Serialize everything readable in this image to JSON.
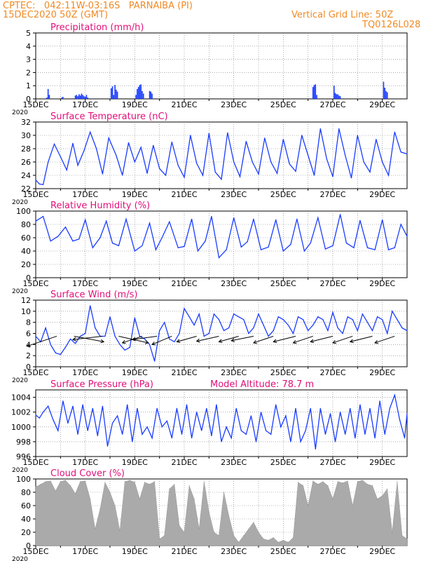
{
  "header": {
    "line1": "CPTEC:   042:11W-03:16S   PARNAIBA (PI)",
    "line2": "15DEC2020 50Z (GMT)",
    "grid_note": "Vertical Grid Line: 50Z",
    "code": "TQ0126L028",
    "color": "#f08a24"
  },
  "colors": {
    "title": "#e0107a",
    "series": "#1a3cff",
    "cloud": "#aaaaaa",
    "grid": "#777777",
    "wind_arrow": "#000000"
  },
  "chart_data": [
    {
      "type": "bar",
      "title": "Precipitation (mm/h)",
      "ylim": [
        0,
        5
      ],
      "yticks": [
        0,
        1,
        2,
        3,
        4,
        5
      ],
      "xticks": [
        "15DEC",
        "17DEC",
        "19DEC",
        "21DEC",
        "23DEC",
        "25DEC",
        "27DEC",
        "29DEC"
      ],
      "corner_label": "2020",
      "x_days": [
        0.45,
        0.5,
        0.55,
        1.05,
        1.1,
        1.6,
        1.65,
        1.7,
        1.75,
        1.8,
        1.85,
        1.9,
        1.95,
        2.0,
        2.05,
        2.1,
        3.05,
        3.1,
        3.15,
        3.2,
        3.25,
        3.3,
        4.05,
        4.1,
        4.15,
        4.2,
        4.25,
        4.3,
        4.35,
        4.6,
        4.65,
        4.7,
        11.2,
        11.25,
        11.3,
        11.35,
        12.05,
        12.1,
        12.15,
        12.2,
        12.25,
        12.3,
        14.05,
        14.1,
        14.15,
        14.2
      ],
      "values": [
        0.1,
        0.75,
        0.3,
        0.1,
        0.15,
        0.25,
        0.3,
        0.2,
        0.35,
        0.25,
        0.4,
        0.3,
        0.2,
        0.15,
        0.3,
        0.1,
        0.8,
        0.95,
        0.3,
        1.05,
        0.7,
        0.55,
        0.3,
        0.75,
        0.9,
        1.05,
        1.1,
        0.6,
        0.4,
        0.6,
        0.55,
        0.4,
        0.9,
        1.05,
        1.1,
        0.3,
        1.0,
        0.45,
        0.35,
        0.35,
        0.25,
        0.2,
        1.3,
        0.85,
        0.6,
        0.5
      ]
    },
    {
      "type": "line",
      "title": "Surface Temperature (nC)",
      "ylim": [
        22,
        32
      ],
      "yticks": [
        22,
        24,
        26,
        28,
        30,
        32
      ],
      "xticks": [
        "15DEC",
        "17DEC",
        "19DEC",
        "21DEC",
        "23DEC",
        "25DEC",
        "27DEC",
        "29DEC"
      ],
      "corner_label": "2020",
      "x_days": [
        0,
        0.15,
        0.3,
        0.5,
        0.75,
        1.0,
        1.25,
        1.5,
        1.7,
        1.95,
        2.2,
        2.45,
        2.7,
        2.95,
        3.25,
        3.5,
        3.75,
        4.0,
        4.25,
        4.5,
        4.75,
        5.0,
        5.25,
        5.5,
        5.75,
        6.0,
        6.25,
        6.5,
        6.75,
        7.0,
        7.25,
        7.5,
        7.75,
        8.0,
        8.25,
        8.5,
        8.75,
        9.0,
        9.25,
        9.5,
        9.75,
        10.0,
        10.25,
        10.5,
        10.75,
        11.0,
        11.25,
        11.5,
        11.75,
        12.0,
        12.25,
        12.5,
        12.75,
        13.0,
        13.25,
        13.5,
        13.75,
        14.0,
        14.25,
        14.5,
        14.75,
        15.0
      ],
      "values": [
        23.3,
        22.7,
        22.6,
        26.0,
        28.7,
        26.8,
        24.8,
        28.8,
        25.5,
        27.7,
        30.5,
        28.0,
        24.2,
        29.6,
        27.0,
        24.0,
        28.9,
        26.0,
        28.2,
        24.3,
        28.5,
        25.0,
        24.0,
        29.0,
        25.5,
        23.7,
        30.0,
        25.8,
        24.0,
        30.3,
        24.5,
        23.4,
        30.4,
        26.0,
        23.8,
        29.1,
        26.0,
        24.2,
        29.6,
        26.0,
        24.3,
        29.4,
        25.7,
        24.6,
        30.0,
        27.0,
        24.0,
        31.0,
        26.5,
        23.8,
        31.0,
        27.0,
        23.6,
        30.0,
        26.0,
        24.5,
        29.4,
        26.0,
        24.0,
        30.5,
        27.5,
        27.2
      ]
    },
    {
      "type": "line",
      "title": "Relative Humidity (%)",
      "ylim": [
        0,
        100
      ],
      "yticks": [
        0,
        20,
        40,
        60,
        80,
        100
      ],
      "xticks": [
        "15DEC",
        "17DEC",
        "19DEC",
        "21DEC",
        "23DEC",
        "25DEC",
        "27DEC",
        "29DEC"
      ],
      "corner_label": "2020",
      "x_days": [
        0,
        0.3,
        0.6,
        0.9,
        1.2,
        1.5,
        1.75,
        2.0,
        2.3,
        2.6,
        2.85,
        3.1,
        3.35,
        3.65,
        4.0,
        4.3,
        4.6,
        4.85,
        5.1,
        5.4,
        5.75,
        6.0,
        6.3,
        6.55,
        6.85,
        7.1,
        7.4,
        7.7,
        8.0,
        8.3,
        8.55,
        8.8,
        9.1,
        9.4,
        9.7,
        10.0,
        10.3,
        10.55,
        10.85,
        11.1,
        11.4,
        11.7,
        12.0,
        12.3,
        12.55,
        12.85,
        13.1,
        13.4,
        13.7,
        14.0,
        14.25,
        14.5,
        14.75,
        15.0
      ],
      "values": [
        85,
        92,
        55,
        62,
        76,
        55,
        58,
        87,
        45,
        60,
        85,
        52,
        48,
        88,
        40,
        48,
        82,
        42,
        60,
        84,
        45,
        47,
        88,
        40,
        55,
        92,
        30,
        42,
        90,
        46,
        54,
        88,
        42,
        46,
        87,
        40,
        50,
        88,
        40,
        52,
        90,
        43,
        48,
        95,
        52,
        45,
        86,
        45,
        42,
        87,
        42,
        45,
        80,
        62
      ]
    },
    {
      "type": "line",
      "title": "Surface Wind (m/s)",
      "ylim": [
        0,
        12
      ],
      "yticks": [
        0,
        2,
        4,
        6,
        8,
        10,
        12
      ],
      "xticks": [
        "15DEC",
        "17DEC",
        "19DEC",
        "21DEC",
        "23DEC",
        "25DEC",
        "27DEC",
        "29DEC"
      ],
      "corner_label": "2020",
      "x_days": [
        0,
        0.2,
        0.4,
        0.6,
        0.8,
        1.0,
        1.2,
        1.4,
        1.6,
        1.8,
        2.0,
        2.2,
        2.4,
        2.6,
        2.8,
        3.0,
        3.2,
        3.4,
        3.6,
        3.8,
        4.0,
        4.2,
        4.4,
        4.6,
        4.8,
        5.0,
        5.2,
        5.4,
        5.6,
        5.8,
        6.0,
        6.2,
        6.4,
        6.6,
        6.8,
        7.0,
        7.2,
        7.4,
        7.6,
        7.8,
        8.0,
        8.2,
        8.4,
        8.6,
        8.8,
        9.0,
        9.2,
        9.4,
        9.6,
        9.8,
        10.0,
        10.2,
        10.4,
        10.6,
        10.8,
        11.0,
        11.2,
        11.4,
        11.6,
        11.8,
        12.0,
        12.2,
        12.4,
        12.6,
        12.8,
        13.0,
        13.2,
        13.4,
        13.6,
        13.8,
        14.0,
        14.2,
        14.4,
        14.6,
        14.8,
        15.0
      ],
      "values": [
        5.5,
        4.5,
        7.0,
        4.0,
        2.5,
        2.2,
        3.5,
        5.0,
        4.2,
        5.5,
        6.0,
        11.0,
        7.0,
        5.5,
        5.5,
        9.0,
        5.5,
        4.0,
        3.0,
        3.5,
        8.8,
        5.5,
        5.0,
        4.0,
        1.0,
        6.5,
        8.0,
        5.0,
        4.5,
        6.0,
        10.5,
        9.0,
        7.5,
        9.5,
        5.5,
        6.0,
        9.5,
        8.5,
        6.5,
        7.0,
        9.5,
        9.0,
        8.5,
        6.0,
        7.0,
        9.5,
        7.5,
        5.5,
        6.5,
        9.0,
        8.5,
        7.5,
        6.0,
        9.0,
        8.5,
        6.5,
        7.5,
        9.0,
        8.5,
        6.5,
        9.8,
        7.0,
        6.0,
        9.0,
        8.5,
        6.5,
        9.5,
        8.0,
        6.5,
        9.0,
        8.5,
        6.0,
        10.0,
        8.5,
        7.0,
        6.5
      ],
      "barbs": [
        {
          "x_day": 0.85,
          "dx": 1.2,
          "dy": 1.8
        },
        {
          "x_day": 1.55,
          "dx": -1.2,
          "dy": 1.0
        },
        {
          "x_day": 2.7,
          "dx": 1.2,
          "dy": 0.6
        },
        {
          "x_day": 3.35,
          "dx": -1.2,
          "dy": 1.2
        },
        {
          "x_day": 4.3,
          "dx": 0.8,
          "dy": 1.2
        },
        {
          "x_day": 4.9,
          "dx": 1.0,
          "dy": 0.6
        },
        {
          "x_day": 5.5,
          "dx": 0.8,
          "dy": 1.5
        },
        {
          "x_day": 6.5,
          "dx": 0.8,
          "dy": 1.0
        },
        {
          "x_day": 7.4,
          "dx": 0.9,
          "dy": 0.9
        },
        {
          "x_day": 8.2,
          "dx": 0.8,
          "dy": 1.0
        },
        {
          "x_day": 8.8,
          "dx": 0.9,
          "dy": 0.8
        },
        {
          "x_day": 9.6,
          "dx": 0.8,
          "dy": 1.2
        },
        {
          "x_day": 10.5,
          "dx": 0.9,
          "dy": 1.0
        },
        {
          "x_day": 11.2,
          "dx": 0.8,
          "dy": 1.2
        },
        {
          "x_day": 12.0,
          "dx": 0.9,
          "dy": 1.0
        },
        {
          "x_day": 12.8,
          "dx": 0.8,
          "dy": 1.2
        },
        {
          "x_day": 13.6,
          "dx": 0.9,
          "dy": 1.0
        },
        {
          "x_day": 14.5,
          "dx": 0.8,
          "dy": 1.2
        }
      ]
    },
    {
      "type": "line",
      "title": "Surface Pressure (hPa)",
      "subtitle": "Model Altitude: 78.7  m",
      "ylim": [
        996,
        1005
      ],
      "yticks": [
        996,
        998,
        1000,
        1002,
        1004
      ],
      "xticks": [
        "15DEC",
        "17DEC",
        "19DEC",
        "21DEC",
        "23DEC",
        "25DEC",
        "27DEC",
        "29DEC"
      ],
      "corner_label": "2020",
      "x_days": [
        0,
        0.15,
        0.3,
        0.5,
        0.7,
        0.9,
        1.1,
        1.3,
        1.5,
        1.7,
        1.9,
        2.1,
        2.3,
        2.5,
        2.7,
        2.9,
        3.1,
        3.3,
        3.5,
        3.7,
        3.9,
        4.1,
        4.3,
        4.5,
        4.7,
        4.9,
        5.1,
        5.3,
        5.5,
        5.7,
        5.9,
        6.1,
        6.3,
        6.5,
        6.7,
        6.9,
        7.1,
        7.3,
        7.5,
        7.7,
        7.9,
        8.1,
        8.3,
        8.5,
        8.7,
        8.9,
        9.1,
        9.3,
        9.5,
        9.7,
        9.9,
        10.1,
        10.3,
        10.5,
        10.7,
        10.9,
        11.1,
        11.3,
        11.5,
        11.7,
        11.9,
        12.1,
        12.3,
        12.5,
        12.7,
        12.9,
        13.1,
        13.3,
        13.5,
        13.7,
        13.9,
        14.1,
        14.3,
        14.5,
        14.7,
        14.9,
        15.0
      ],
      "values": [
        1001.6,
        1001.2,
        1002.0,
        1002.8,
        1001.0,
        999.5,
        1003.5,
        1000.5,
        1002.8,
        999.0,
        1003.0,
        999.5,
        1002.5,
        998.8,
        1002.8,
        997.4,
        1000.5,
        1001.5,
        999.0,
        1003.0,
        998.0,
        1002.5,
        999.0,
        1000.0,
        998.5,
        1002.5,
        1000.0,
        1000.8,
        998.5,
        1002.5,
        999.0,
        1003.0,
        998.5,
        1002.0,
        999.5,
        1002.5,
        998.8,
        1003.0,
        998.0,
        1000.0,
        998.5,
        1002.5,
        999.5,
        999.0,
        1001.5,
        998.0,
        1002.0,
        999.5,
        999.0,
        1003.0,
        1000.0,
        1001.5,
        998.0,
        1002.5,
        998.0,
        999.5,
        1002.5,
        997.0,
        1002.5,
        999.0,
        1001.8,
        998.0,
        1002.0,
        999.0,
        1002.5,
        998.5,
        1003.0,
        999.0,
        1002.5,
        998.5,
        1003.5,
        999.0,
        1002.5,
        1004.3,
        1001.0,
        998.5,
        1001.8
      ]
    },
    {
      "type": "area",
      "title": "Cloud Cover (%)",
      "ylim": [
        0,
        100
      ],
      "yticks": [
        0,
        20,
        40,
        60,
        80,
        100
      ],
      "xticks": [
        "15DEC",
        "17DEC",
        "19DEC",
        "21DEC",
        "23DEC",
        "25DEC",
        "27DEC",
        "29DEC"
      ],
      "corner_label": "2020",
      "x_days": [
        0,
        0.2,
        0.4,
        0.6,
        0.8,
        1.0,
        1.2,
        1.4,
        1.6,
        1.8,
        2.0,
        2.2,
        2.4,
        2.6,
        2.8,
        3.0,
        3.2,
        3.4,
        3.6,
        3.8,
        4.0,
        4.2,
        4.4,
        4.6,
        4.8,
        5.0,
        5.2,
        5.4,
        5.6,
        5.8,
        6.0,
        6.2,
        6.4,
        6.6,
        6.8,
        7.0,
        7.2,
        7.4,
        7.6,
        7.8,
        8.0,
        8.2,
        8.4,
        8.6,
        8.8,
        9.0,
        9.2,
        9.4,
        9.6,
        9.8,
        10.0,
        10.2,
        10.4,
        10.6,
        10.8,
        11.0,
        11.2,
        11.4,
        11.6,
        11.8,
        12.0,
        12.2,
        12.4,
        12.6,
        12.8,
        13.0,
        13.2,
        13.4,
        13.6,
        13.8,
        14.0,
        14.2,
        14.4,
        14.6,
        14.8,
        15.0
      ],
      "values": [
        88,
        92,
        96,
        97,
        82,
        96,
        98,
        90,
        78,
        96,
        97,
        70,
        25,
        55,
        95,
        80,
        60,
        22,
        96,
        98,
        95,
        70,
        95,
        92,
        96,
        10,
        15,
        85,
        92,
        30,
        20,
        90,
        70,
        25,
        96,
        50,
        20,
        15,
        80,
        45,
        15,
        5,
        15,
        25,
        35,
        20,
        10,
        8,
        12,
        5,
        8,
        5,
        12,
        95,
        90,
        60,
        97,
        92,
        96,
        90,
        70,
        96,
        94,
        97,
        60,
        96,
        98,
        92,
        90,
        70,
        75,
        85,
        20,
        96,
        15,
        10
      ]
    }
  ]
}
